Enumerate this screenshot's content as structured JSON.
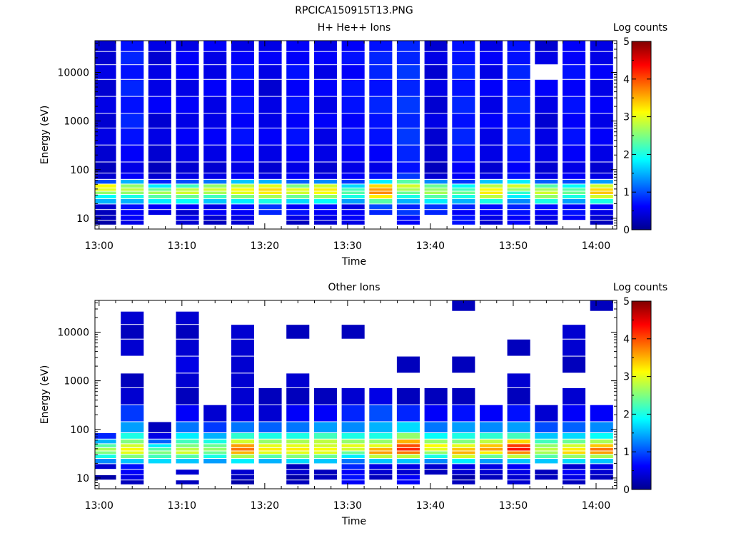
{
  "figure_title": "RPCICA150915T13.PNG",
  "chart_data": [
    {
      "type": "heatmap",
      "title": "H+ He++ Ions",
      "xlabel": "Time",
      "ylabel": "Energy (eV)",
      "x_ticks": [
        "13:00",
        "13:10",
        "13:20",
        "13:30",
        "13:40",
        "13:50",
        "14:00"
      ],
      "x_range": [
        "12:59:30",
        "14:02:30"
      ],
      "y_scale": "log",
      "y_ticks": [
        10,
        100,
        1000,
        10000
      ],
      "y_tick_labels": [
        "10",
        "100",
        "1000",
        "10000"
      ],
      "y_range": [
        6,
        45000
      ],
      "colorbar": {
        "label": "Log counts",
        "range": [
          0,
          5
        ],
        "ticks": [
          "0",
          "1",
          "2",
          "3",
          "4",
          "5"
        ]
      },
      "time_columns": [
        "13:00:40",
        "13:04:00",
        "13:07:20",
        "13:10:40",
        "13:14:00",
        "13:17:20",
        "13:20:40",
        "13:24:00",
        "13:27:20",
        "13:30:40",
        "13:34:00",
        "13:37:20",
        "13:40:40",
        "13:44:00",
        "13:47:20",
        "13:50:40",
        "13:54:00",
        "13:57:20",
        "14:00:40"
      ],
      "energy_bins_eV": [
        8,
        10,
        13,
        17,
        22,
        28,
        33,
        38,
        45,
        55,
        70,
        100,
        200,
        500,
        1000,
        2000,
        5000,
        10000,
        20000,
        35000
      ],
      "log_counts": [
        [
          0.2,
          0.3,
          0.3,
          0.4,
          1.5,
          1.9,
          2.6,
          3.0,
          3.1,
          1.0,
          0.4,
          0.3,
          0.4,
          0.5,
          0.4,
          0.5,
          0.4,
          0.5,
          0.4,
          0.4
        ],
        [
          0.5,
          0.6,
          0.6,
          0.7,
          1.5,
          2.0,
          2.6,
          2.8,
          2.6,
          1.5,
          0.6,
          0.5,
          0.6,
          0.7,
          0.8,
          0.7,
          0.8,
          0.7,
          0.8,
          0.7
        ],
        [
          null,
          null,
          0.5,
          0.6,
          1.8,
          2.3,
          2.7,
          2.4,
          1.8,
          0.8,
          0.4,
          0.3,
          0.4,
          0.5,
          0.4,
          0.6,
          0.5,
          0.5,
          0.4,
          0.5
        ],
        [
          0.4,
          0.5,
          0.4,
          0.6,
          1.9,
          2.4,
          2.9,
          2.8,
          2.2,
          1.0,
          0.5,
          0.4,
          0.5,
          0.6,
          0.5,
          0.6,
          0.5,
          0.6,
          0.6,
          0.5
        ],
        [
          0.3,
          0.4,
          0.6,
          0.5,
          1.6,
          2.2,
          2.7,
          2.9,
          2.6,
          1.2,
          0.5,
          0.4,
          0.5,
          0.6,
          0.5,
          0.5,
          0.6,
          0.5,
          0.5,
          0.6
        ],
        [
          0.4,
          0.5,
          0.6,
          0.7,
          1.8,
          2.5,
          3.0,
          3.1,
          2.8,
          1.6,
          0.6,
          0.5,
          0.6,
          0.7,
          0.6,
          0.7,
          0.6,
          0.7,
          0.6,
          0.5
        ],
        [
          null,
          null,
          0.8,
          0.9,
          2.0,
          2.7,
          3.2,
          3.3,
          3.0,
          1.5,
          0.5,
          0.4,
          0.5,
          0.6,
          0.5,
          0.5,
          0.4,
          0.5,
          0.6,
          0.5
        ],
        [
          0.3,
          0.5,
          0.7,
          0.6,
          1.7,
          2.4,
          2.9,
          3.0,
          2.5,
          1.1,
          0.6,
          0.5,
          0.6,
          0.7,
          0.6,
          0.7,
          0.6,
          0.7,
          0.6,
          0.6
        ],
        [
          0.4,
          0.5,
          0.6,
          0.7,
          1.9,
          2.6,
          3.1,
          3.2,
          2.9,
          1.3,
          0.5,
          0.4,
          0.5,
          0.5,
          0.6,
          0.5,
          0.6,
          0.5,
          0.6,
          0.5
        ],
        [
          0.5,
          0.6,
          0.6,
          0.5,
          1.4,
          2.0,
          2.3,
          2.2,
          1.7,
          0.9,
          0.6,
          0.5,
          0.6,
          0.7,
          0.6,
          0.7,
          0.7,
          0.6,
          0.7,
          0.6
        ],
        [
          null,
          null,
          0.8,
          1.0,
          2.3,
          3.2,
          3.7,
          3.6,
          3.3,
          1.8,
          0.7,
          0.5,
          0.6,
          0.7,
          0.7,
          0.8,
          0.7,
          0.8,
          0.8,
          0.7
        ],
        [
          0.6,
          0.7,
          0.9,
          0.8,
          1.5,
          2.0,
          2.4,
          2.7,
          2.9,
          2.3,
          0.9,
          0.7,
          0.8,
          0.9,
          0.8,
          0.9,
          0.8,
          0.9,
          0.8,
          0.8
        ],
        [
          null,
          null,
          0.8,
          0.9,
          1.8,
          2.3,
          2.7,
          2.6,
          2.4,
          1.3,
          0.4,
          0.3,
          0.4,
          0.4,
          0.5,
          0.4,
          0.5,
          0.4,
          0.5,
          0.4
        ],
        [
          0.7,
          0.7,
          0.6,
          0.8,
          1.5,
          2.0,
          2.4,
          2.2,
          1.9,
          0.9,
          0.6,
          0.6,
          0.7,
          0.8,
          0.7,
          0.8,
          0.7,
          0.8,
          0.7,
          0.7
        ],
        [
          0.4,
          0.5,
          0.6,
          0.7,
          2.0,
          2.8,
          3.2,
          3.1,
          2.8,
          1.6,
          0.5,
          0.4,
          0.5,
          0.5,
          0.6,
          0.5,
          0.6,
          0.5,
          0.6,
          0.5
        ],
        [
          0.6,
          0.6,
          0.7,
          0.8,
          1.3,
          1.8,
          2.1,
          2.6,
          2.9,
          1.8,
          0.7,
          0.6,
          0.7,
          0.8,
          0.7,
          0.8,
          0.7,
          0.8,
          0.7,
          0.7
        ],
        [
          0.4,
          0.5,
          0.6,
          0.7,
          2.0,
          2.6,
          2.9,
          2.7,
          2.3,
          1.1,
          0.5,
          0.4,
          0.5,
          0.5,
          0.4,
          0.5,
          0.6,
          null,
          0.5,
          0.4
        ],
        [
          null,
          0.6,
          0.7,
          0.6,
          1.4,
          2.0,
          2.4,
          2.3,
          1.9,
          1.0,
          0.6,
          0.5,
          0.6,
          0.7,
          0.6,
          0.7,
          0.6,
          0.7,
          0.6,
          0.6
        ],
        [
          0.3,
          0.4,
          0.5,
          0.6,
          2.0,
          2.9,
          3.4,
          3.3,
          2.9,
          1.4,
          0.5,
          0.4,
          0.5,
          0.6,
          0.5,
          0.6,
          0.5,
          0.6,
          0.5,
          0.5
        ]
      ]
    },
    {
      "type": "heatmap",
      "title": "Other Ions",
      "xlabel": "Time",
      "ylabel": "Energy (eV)",
      "x_ticks": [
        "13:00",
        "13:10",
        "13:20",
        "13:30",
        "13:40",
        "13:50",
        "14:00"
      ],
      "x_range": [
        "12:59:30",
        "14:02:30"
      ],
      "y_scale": "log",
      "y_ticks": [
        10,
        100,
        1000,
        10000
      ],
      "y_tick_labels": [
        "10",
        "100",
        "1000",
        "10000"
      ],
      "y_range": [
        6,
        45000
      ],
      "colorbar": {
        "label": "Log counts",
        "range": [
          0,
          5
        ],
        "ticks": [
          "0",
          "1",
          "2",
          "3",
          "4",
          "5"
        ]
      },
      "time_columns": [
        "13:00:40",
        "13:04:00",
        "13:07:20",
        "13:10:40",
        "13:14:00",
        "13:17:20",
        "13:20:40",
        "13:24:00",
        "13:27:20",
        "13:30:40",
        "13:34:00",
        "13:37:20",
        "13:40:40",
        "13:44:00",
        "13:47:20",
        "13:50:40",
        "13:54:00",
        "13:57:20",
        "14:00:40"
      ],
      "energy_bins_eV": [
        8,
        10,
        13,
        17,
        22,
        28,
        33,
        38,
        45,
        55,
        70,
        100,
        200,
        500,
        1000,
        2000,
        5000,
        10000,
        20000,
        35000
      ],
      "log_counts": [
        [
          null,
          0.2,
          null,
          0.4,
          1.3,
          2.0,
          2.5,
          2.7,
          2.3,
          1.5,
          0.8,
          null,
          null,
          null,
          null,
          null,
          null,
          null,
          null,
          null
        ],
        [
          0.3,
          0.5,
          0.6,
          0.7,
          1.6,
          2.5,
          3.0,
          3.1,
          2.9,
          2.5,
          2.0,
          1.4,
          0.9,
          0.4,
          0.3,
          null,
          0.4,
          0.3,
          0.4,
          null
        ],
        [
          null,
          null,
          null,
          null,
          1.7,
          2.2,
          2.5,
          2.3,
          1.8,
          1.1,
          0.5,
          0.3,
          null,
          null,
          null,
          null,
          null,
          null,
          null,
          null
        ],
        [
          0.3,
          null,
          0.4,
          null,
          1.6,
          2.3,
          2.9,
          2.8,
          2.5,
          2.2,
          1.8,
          1.2,
          0.6,
          0.3,
          0.4,
          0.5,
          0.4,
          0.3,
          0.4,
          null
        ],
        [
          null,
          null,
          null,
          null,
          1.4,
          2.0,
          2.4,
          2.6,
          2.4,
          2.0,
          1.5,
          0.9,
          0.4,
          null,
          null,
          null,
          null,
          null,
          null,
          null
        ],
        [
          0.2,
          0.3,
          0.4,
          null,
          1.8,
          2.7,
          3.5,
          3.8,
          3.6,
          2.9,
          2.1,
          1.2,
          0.5,
          0.4,
          0.4,
          0.4,
          0.4,
          0.4,
          null,
          null
        ],
        [
          null,
          null,
          null,
          null,
          1.5,
          2.3,
          3.0,
          3.2,
          3.0,
          2.6,
          2.0,
          1.1,
          0.4,
          0.3,
          null,
          null,
          null,
          null,
          null,
          null
        ],
        [
          0.3,
          0.2,
          0.4,
          0.3,
          1.7,
          2.5,
          3.0,
          3.2,
          3.0,
          2.7,
          2.0,
          1.2,
          0.6,
          0.3,
          0.4,
          null,
          null,
          0.3,
          null,
          null
        ],
        [
          null,
          0.3,
          0.3,
          null,
          1.6,
          2.4,
          3.0,
          3.1,
          2.9,
          2.8,
          2.2,
          1.4,
          0.6,
          0.3,
          null,
          null,
          null,
          null,
          null,
          null
        ],
        [
          0.6,
          0.7,
          0.6,
          0.8,
          1.2,
          1.8,
          2.4,
          2.9,
          3.0,
          2.6,
          2.0,
          1.3,
          0.8,
          0.4,
          null,
          null,
          null,
          0.3,
          null,
          null
        ],
        [
          null,
          0.3,
          0.4,
          0.5,
          1.6,
          2.8,
          3.6,
          3.5,
          3.0,
          2.6,
          2.0,
          1.5,
          1.0,
          0.5,
          null,
          null,
          null,
          null,
          null,
          null
        ],
        [
          0.6,
          0.6,
          0.4,
          0.5,
          1.6,
          2.8,
          3.8,
          4.2,
          4.0,
          3.5,
          2.6,
          1.7,
          0.8,
          0.3,
          null,
          0.3,
          null,
          null,
          null,
          null
        ],
        [
          null,
          null,
          0.3,
          0.4,
          1.3,
          2.0,
          2.6,
          3.0,
          3.1,
          2.6,
          1.9,
          1.2,
          0.6,
          0.3,
          null,
          null,
          null,
          null,
          null,
          null
        ],
        [
          0.3,
          0.2,
          0.4,
          0.5,
          1.8,
          2.9,
          3.5,
          3.4,
          3.0,
          2.5,
          2.0,
          1.4,
          0.7,
          0.3,
          null,
          0.3,
          null,
          null,
          null,
          0.3
        ],
        [
          null,
          0.3,
          0.4,
          0.5,
          1.4,
          2.4,
          3.2,
          3.6,
          3.4,
          2.8,
          2.1,
          1.3,
          0.6,
          null,
          null,
          null,
          null,
          null,
          null,
          null
        ],
        [
          0.4,
          0.4,
          0.5,
          0.6,
          1.6,
          2.8,
          3.7,
          4.3,
          4.1,
          3.3,
          2.2,
          1.4,
          0.7,
          0.3,
          0.4,
          null,
          0.3,
          null,
          null,
          null
        ],
        [
          null,
          0.3,
          0.3,
          null,
          1.6,
          2.3,
          2.7,
          2.8,
          2.6,
          2.2,
          1.6,
          1.0,
          0.4,
          null,
          null,
          null,
          null,
          null,
          null,
          null
        ],
        [
          0.3,
          0.5,
          0.6,
          0.4,
          1.7,
          2.6,
          3.3,
          3.2,
          2.9,
          2.4,
          1.7,
          1.1,
          0.6,
          0.4,
          null,
          0.3,
          0.4,
          0.4,
          null,
          null
        ],
        [
          null,
          0.3,
          0.4,
          0.5,
          1.6,
          2.7,
          3.6,
          3.8,
          3.4,
          2.7,
          1.9,
          1.3,
          0.6,
          null,
          null,
          null,
          null,
          null,
          null,
          0.3
        ]
      ]
    }
  ]
}
